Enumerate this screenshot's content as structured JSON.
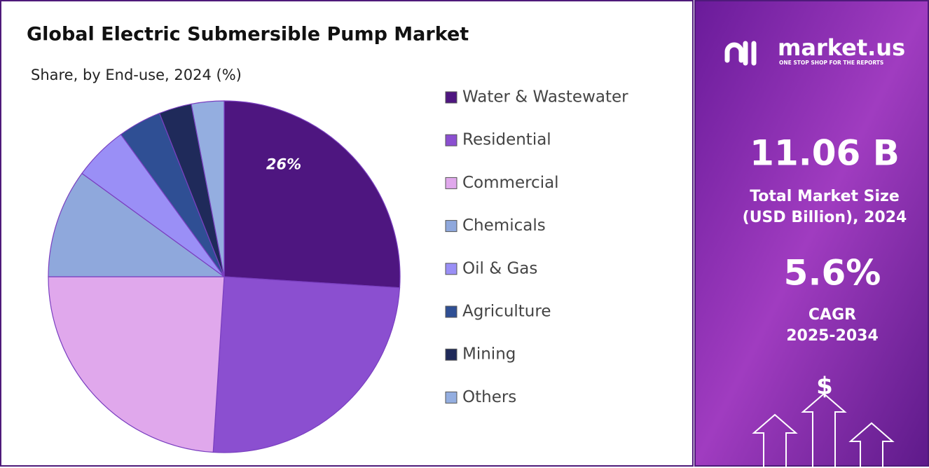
{
  "chart_data": {
    "type": "pie",
    "title": "Global Electric Submersible Pump Market",
    "subtitle": "Share, by End-use, 2024 (%)",
    "categories": [
      "Water & Wastewater",
      "Residential",
      "Commercial",
      "Chemicals",
      "Oil & Gas",
      "Agriculture",
      "Mining",
      "Others"
    ],
    "values": [
      26,
      25,
      24,
      10,
      5,
      4,
      3,
      3
    ],
    "value_labels": [
      "26%",
      null,
      null,
      null,
      null,
      null,
      null,
      null
    ],
    "colors": [
      "#4e1680",
      "#8b4fd0",
      "#e0a8ec",
      "#8fa8dc",
      "#9a8ff6",
      "#2f4f94",
      "#1f2a5a",
      "#94aee0"
    ],
    "legend": "right"
  },
  "panel": {
    "brand": "market.us",
    "tagline": "ONE STOP SHOP FOR THE REPORTS",
    "market_size": "11.06 B",
    "market_size_label_1": "Total Market Size",
    "market_size_label_2": "(USD Billion), 2024",
    "cagr": "5.6%",
    "cagr_label_1": "CAGR",
    "cagr_label_2": "2025-2034",
    "currency": "$"
  }
}
